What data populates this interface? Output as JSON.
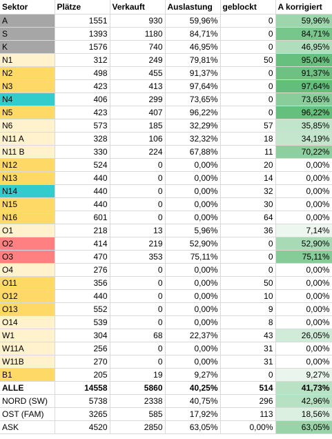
{
  "header": [
    "Sektor",
    "Plätze",
    "Verkauft",
    "Auslastung",
    "geblockt",
    "A korrigiert"
  ],
  "colors": {
    "gray": "#a6a6a6",
    "light_yellow": "#fff2cc",
    "yellow": "#ffd966",
    "teal": "#33cccc",
    "salmon": "#ff8080",
    "green_high": "#63be7b",
    "green_low": "#f8fcf9",
    "grid": "#d9d9d9"
  },
  "rows": [
    {
      "sektor": "A",
      "plaetze": "1551",
      "verkauft": "930",
      "auslastung": "59,96%",
      "geblockt": "0",
      "korrigiert": "59,96%",
      "fill": "gray",
      "a": 0.5996
    },
    {
      "sektor": "S",
      "plaetze": "1393",
      "verkauft": "1180",
      "auslastung": "84,71%",
      "geblockt": "0",
      "korrigiert": "84,71%",
      "fill": "gray",
      "a": 0.8471
    },
    {
      "sektor": "K",
      "plaetze": "1576",
      "verkauft": "740",
      "auslastung": "46,95%",
      "geblockt": "0",
      "korrigiert": "46,95%",
      "fill": "gray",
      "a": 0.4695
    },
    {
      "sektor": "N1",
      "plaetze": "312",
      "verkauft": "249",
      "auslastung": "79,81%",
      "geblockt": "50",
      "korrigiert": "95,04%",
      "fill": "light_yellow",
      "a": 0.9504
    },
    {
      "sektor": "N2",
      "plaetze": "498",
      "verkauft": "455",
      "auslastung": "91,37%",
      "geblockt": "0",
      "korrigiert": "91,37%",
      "fill": "yellow",
      "a": 0.9137
    },
    {
      "sektor": "N3",
      "plaetze": "423",
      "verkauft": "413",
      "auslastung": "97,64%",
      "geblockt": "0",
      "korrigiert": "97,64%",
      "fill": "yellow",
      "a": 0.9764
    },
    {
      "sektor": "N4",
      "plaetze": "406",
      "verkauft": "299",
      "auslastung": "73,65%",
      "geblockt": "0",
      "korrigiert": "73,65%",
      "fill": "teal",
      "a": 0.7365
    },
    {
      "sektor": "N5",
      "plaetze": "423",
      "verkauft": "407",
      "auslastung": "96,22%",
      "geblockt": "0",
      "korrigiert": "96,22%",
      "fill": "yellow",
      "a": 0.9622
    },
    {
      "sektor": "N6",
      "plaetze": "573",
      "verkauft": "185",
      "auslastung": "32,29%",
      "geblockt": "57",
      "korrigiert": "35,85%",
      "fill": "light_yellow",
      "a": 0.3585
    },
    {
      "sektor": "N11 A",
      "plaetze": "328",
      "verkauft": "106",
      "auslastung": "32,32%",
      "geblockt": "18",
      "korrigiert": "34,19%",
      "fill": "light_yellow",
      "a": 0.3419
    },
    {
      "sektor": "N11 B",
      "plaetze": "330",
      "verkauft": "224",
      "auslastung": "67,88%",
      "geblockt": "11",
      "korrigiert": "70,22%",
      "fill": "light_yellow",
      "a": 0.7022
    },
    {
      "sektor": "N12",
      "plaetze": "524",
      "verkauft": "0",
      "auslastung": "0,00%",
      "geblockt": "20",
      "korrigiert": "0,00%",
      "fill": "yellow",
      "a": 0
    },
    {
      "sektor": "N13",
      "plaetze": "440",
      "verkauft": "0",
      "auslastung": "0,00%",
      "geblockt": "14",
      "korrigiert": "0,00%",
      "fill": "yellow",
      "a": 0
    },
    {
      "sektor": "N14",
      "plaetze": "440",
      "verkauft": "0",
      "auslastung": "0,00%",
      "geblockt": "32",
      "korrigiert": "0,00%",
      "fill": "teal",
      "a": 0
    },
    {
      "sektor": "N15",
      "plaetze": "440",
      "verkauft": "0",
      "auslastung": "0,00%",
      "geblockt": "30",
      "korrigiert": "0,00%",
      "fill": "yellow",
      "a": 0
    },
    {
      "sektor": "N16",
      "plaetze": "601",
      "verkauft": "0",
      "auslastung": "0,00%",
      "geblockt": "64",
      "korrigiert": "0,00%",
      "fill": "yellow",
      "a": 0
    },
    {
      "sektor": "O1",
      "plaetze": "218",
      "verkauft": "13",
      "auslastung": "5,96%",
      "geblockt": "36",
      "korrigiert": "7,14%",
      "fill": "light_yellow",
      "a": 0.0714
    },
    {
      "sektor": "O2",
      "plaetze": "414",
      "verkauft": "219",
      "auslastung": "52,90%",
      "geblockt": "0",
      "korrigiert": "52,90%",
      "fill": "salmon",
      "a": 0.529
    },
    {
      "sektor": "O3",
      "plaetze": "470",
      "verkauft": "353",
      "auslastung": "75,11%",
      "geblockt": "0",
      "korrigiert": "75,11%",
      "fill": "salmon",
      "a": 0.7511
    },
    {
      "sektor": "O4",
      "plaetze": "276",
      "verkauft": "0",
      "auslastung": "0,00%",
      "geblockt": "0",
      "korrigiert": "0,00%",
      "fill": "light_yellow",
      "a": 0
    },
    {
      "sektor": "O11",
      "plaetze": "356",
      "verkauft": "0",
      "auslastung": "0,00%",
      "geblockt": "50",
      "korrigiert": "0,00%",
      "fill": "yellow",
      "a": 0
    },
    {
      "sektor": "O12",
      "plaetze": "440",
      "verkauft": "0",
      "auslastung": "0,00%",
      "geblockt": "10",
      "korrigiert": "0,00%",
      "fill": "yellow",
      "a": 0
    },
    {
      "sektor": "O13",
      "plaetze": "552",
      "verkauft": "0",
      "auslastung": "0,00%",
      "geblockt": "9",
      "korrigiert": "0,00%",
      "fill": "yellow",
      "a": 0
    },
    {
      "sektor": "O14",
      "plaetze": "539",
      "verkauft": "0",
      "auslastung": "0,00%",
      "geblockt": "8",
      "korrigiert": "0,00%",
      "fill": "light_yellow",
      "a": 0
    },
    {
      "sektor": "W1",
      "plaetze": "304",
      "verkauft": "68",
      "auslastung": "22,37%",
      "geblockt": "43",
      "korrigiert": "26,05%",
      "fill": "light_yellow",
      "a": 0.2605
    },
    {
      "sektor": "W11A",
      "plaetze": "256",
      "verkauft": "0",
      "auslastung": "0,00%",
      "geblockt": "31",
      "korrigiert": "0,00%",
      "fill": "light_yellow",
      "a": 0
    },
    {
      "sektor": "W11B",
      "plaetze": "270",
      "verkauft": "0",
      "auslastung": "0,00%",
      "geblockt": "31",
      "korrigiert": "0,00%",
      "fill": "light_yellow",
      "a": 0
    },
    {
      "sektor": "B1",
      "plaetze": "205",
      "verkauft": "19",
      "auslastung": "9,27%",
      "geblockt": "0",
      "korrigiert": "9,27%",
      "fill": "yellow",
      "a": 0.0927
    },
    {
      "sektor": "ALLE",
      "plaetze": "14558",
      "verkauft": "5860",
      "auslastung": "40,25%",
      "geblockt": "514",
      "korrigiert": "41,73%",
      "fill": "none",
      "bold": true,
      "a": 0.4173
    },
    {
      "sektor": "NORD (SW)",
      "plaetze": "5738",
      "verkauft": "2338",
      "auslastung": "40,75%",
      "geblockt": "296",
      "korrigiert": "42,96%",
      "fill": "none",
      "a": 0.4296
    },
    {
      "sektor": "OST (FAM)",
      "plaetze": "3265",
      "verkauft": "585",
      "auslastung": "17,92%",
      "geblockt": "113",
      "korrigiert": "18,56%",
      "fill": "none",
      "a": 0.1856
    },
    {
      "sektor": "ASK",
      "plaetze": "4520",
      "verkauft": "2850",
      "auslastung": "63,05%",
      "geblockt": "0,00%",
      "korrigiert": "63,05%",
      "fill": "none",
      "a": 0.6305
    }
  ]
}
